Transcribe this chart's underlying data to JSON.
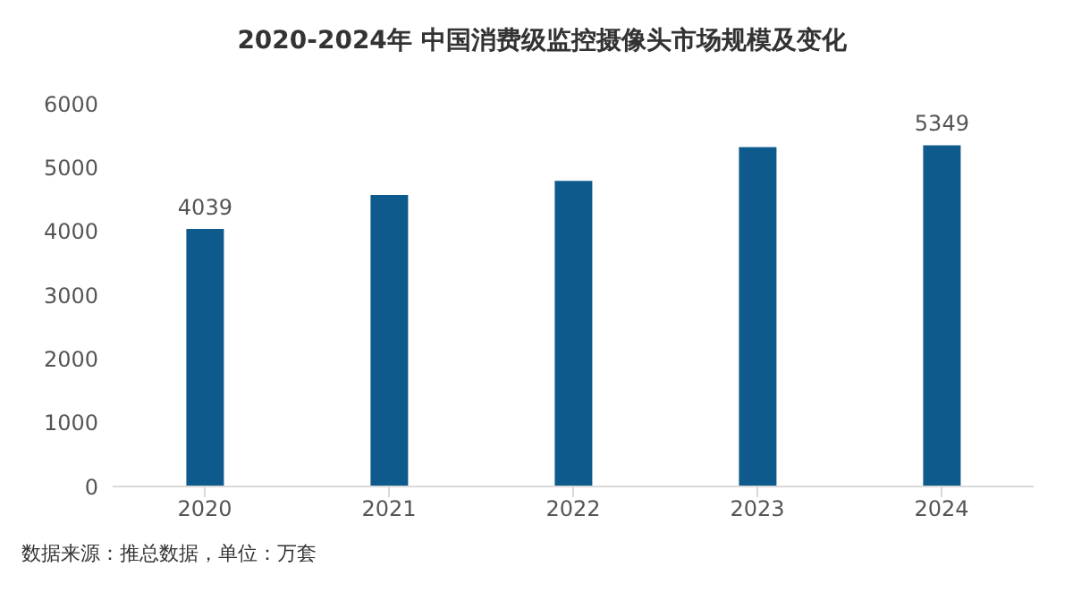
{
  "chart_data": {
    "type": "bar",
    "title": "2020-2024年 中国消费级监控摄像头市场规模及变化",
    "categories": [
      "2020",
      "2021",
      "2022",
      "2023",
      "2024"
    ],
    "values": [
      4039,
      4570,
      4790,
      5320,
      5349
    ],
    "value_labels": [
      "4039",
      null,
      null,
      null,
      "5349"
    ],
    "color": "#0f5a8c",
    "ylim": [
      0,
      6000
    ],
    "yticks": [
      0,
      1000,
      2000,
      3000,
      4000,
      5000,
      6000
    ],
    "grid": false,
    "annotations": [
      "数据来源：推总数据，单位：万套"
    ]
  }
}
